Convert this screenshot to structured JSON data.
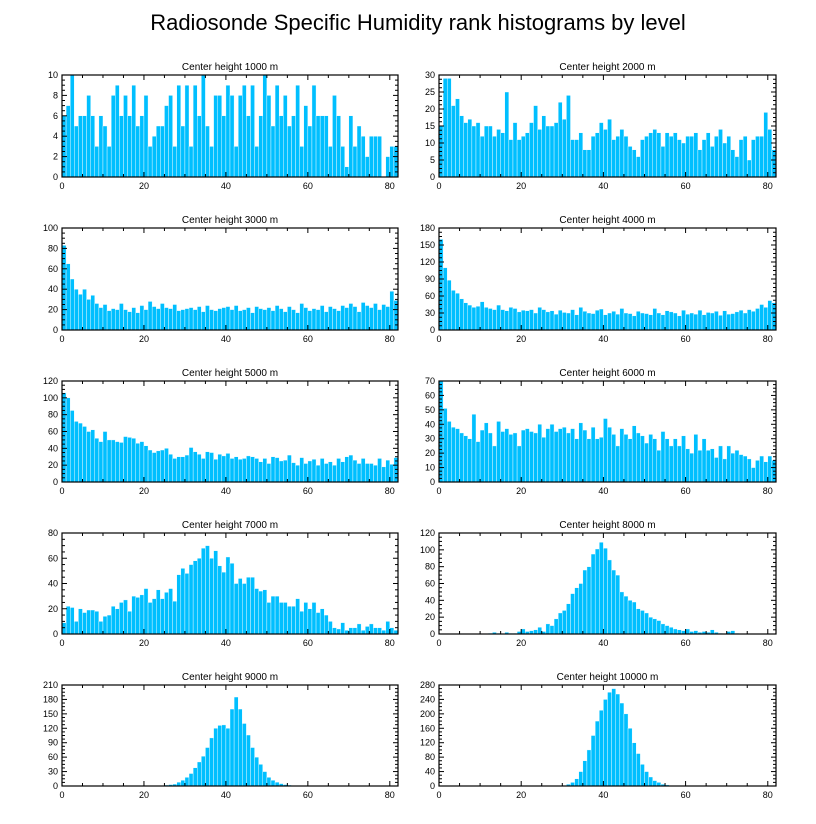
{
  "title": "Radiosonde Specific Humidity rank histograms by level",
  "colors": {
    "bar": "#00bfff",
    "axis": "#000000",
    "background": "#ffffff"
  },
  "chart_data": [
    {
      "type": "bar",
      "title": "Center height 1000 m",
      "xlim": [
        0,
        82
      ],
      "ylim": [
        0,
        10
      ],
      "xticks": [
        0,
        20,
        40,
        60,
        80
      ],
      "yticks": [
        0,
        2,
        4,
        6,
        8,
        10
      ],
      "values": [
        6,
        7,
        10,
        5,
        6,
        6,
        8,
        6,
        3,
        6,
        5,
        3,
        8,
        9,
        6,
        8,
        6,
        9,
        5,
        6,
        8,
        3,
        4,
        5,
        5,
        7,
        8,
        3,
        9,
        5,
        9,
        3,
        9,
        6,
        10,
        5,
        3,
        8,
        8,
        6,
        9,
        8,
        3,
        8,
        9,
        6,
        9,
        3,
        6,
        10,
        8,
        5,
        9,
        6,
        8,
        5,
        6,
        9,
        3,
        7,
        5,
        9,
        6,
        6,
        6,
        3,
        8,
        6,
        3,
        1,
        6,
        3,
        5,
        4,
        2,
        4,
        4,
        4,
        0,
        2,
        3,
        3
      ]
    },
    {
      "type": "bar",
      "title": "Center height 2000 m",
      "xlim": [
        0,
        82
      ],
      "ylim": [
        0,
        30
      ],
      "xticks": [
        0,
        20,
        40,
        60,
        80
      ],
      "yticks": [
        0,
        5,
        10,
        15,
        20,
        25,
        30
      ],
      "values": [
        15,
        29,
        29,
        21,
        23,
        18,
        16,
        17,
        15,
        16,
        12,
        15,
        15,
        12,
        14,
        13,
        25,
        11,
        16,
        11,
        12,
        13,
        16,
        21,
        14,
        18,
        15,
        15,
        16,
        22,
        17,
        24,
        11,
        11,
        13,
        8,
        8,
        12,
        13,
        16,
        14,
        17,
        11,
        12,
        14,
        12,
        9,
        8,
        6,
        11,
        12,
        13,
        14,
        13,
        9,
        13,
        12,
        13,
        11,
        10,
        12,
        12,
        13,
        8,
        11,
        13,
        9,
        12,
        14,
        10,
        12,
        8,
        6,
        11,
        12,
        5,
        11,
        12,
        12,
        19,
        14,
        8
      ]
    },
    {
      "type": "bar",
      "title": "Center height 3000 m",
      "xlim": [
        0,
        82
      ],
      "ylim": [
        0,
        100
      ],
      "xticks": [
        0,
        20,
        40,
        60,
        80
      ],
      "yticks": [
        0,
        20,
        40,
        60,
        80,
        100
      ],
      "values": [
        83,
        65,
        50,
        40,
        35,
        40,
        30,
        34,
        26,
        22,
        25,
        19,
        21,
        20,
        26,
        20,
        18,
        22,
        17,
        24,
        20,
        28,
        23,
        21,
        26,
        22,
        21,
        25,
        19,
        20,
        21,
        22,
        20,
        23,
        18,
        24,
        20,
        19,
        21,
        22,
        23,
        20,
        24,
        19,
        20,
        22,
        17,
        23,
        21,
        20,
        22,
        19,
        24,
        21,
        18,
        23,
        20,
        17,
        26,
        22,
        19,
        21,
        20,
        24,
        18,
        23,
        21,
        19,
        24,
        22,
        26,
        23,
        18,
        27,
        24,
        22,
        26,
        20,
        25,
        23,
        38,
        29
      ]
    },
    {
      "type": "bar",
      "title": "Center height 4000 m",
      "xlim": [
        0,
        82
      ],
      "ylim": [
        0,
        180
      ],
      "xticks": [
        0,
        20,
        40,
        60,
        80
      ],
      "yticks": [
        0,
        30,
        60,
        90,
        120,
        150,
        180
      ],
      "values": [
        160,
        110,
        88,
        70,
        65,
        55,
        48,
        44,
        40,
        42,
        50,
        40,
        38,
        36,
        44,
        36,
        34,
        40,
        38,
        32,
        35,
        34,
        36,
        30,
        40,
        36,
        32,
        34,
        28,
        35,
        31,
        30,
        36,
        27,
        40,
        33,
        30,
        29,
        35,
        37,
        27,
        30,
        33,
        28,
        38,
        30,
        29,
        25,
        33,
        30,
        29,
        27,
        38,
        30,
        27,
        34,
        32,
        30,
        25,
        35,
        28,
        30,
        28,
        35,
        27,
        31,
        30,
        33,
        26,
        34,
        28,
        29,
        32,
        35,
        30,
        36,
        33,
        38,
        45,
        40,
        52,
        48
      ]
    },
    {
      "type": "bar",
      "title": "Center height 5000 m",
      "xlim": [
        0,
        82
      ],
      "ylim": [
        0,
        120
      ],
      "xticks": [
        0,
        20,
        40,
        60,
        80
      ],
      "yticks": [
        0,
        20,
        40,
        60,
        80,
        100,
        120
      ],
      "values": [
        106,
        100,
        85,
        72,
        70,
        66,
        60,
        62,
        52,
        48,
        60,
        50,
        50,
        48,
        47,
        54,
        53,
        52,
        46,
        48,
        43,
        38,
        35,
        37,
        38,
        40,
        33,
        28,
        30,
        30,
        32,
        41,
        36,
        33,
        28,
        36,
        35,
        27,
        33,
        31,
        34,
        28,
        30,
        27,
        28,
        31,
        30,
        28,
        24,
        28,
        22,
        30,
        29,
        25,
        26,
        32,
        23,
        20,
        29,
        22,
        25,
        27,
        20,
        28,
        22,
        24,
        20,
        28,
        24,
        30,
        32,
        26,
        22,
        28,
        22,
        22,
        20,
        28,
        18,
        26,
        21,
        29
      ]
    },
    {
      "type": "bar",
      "title": "Center height 6000 m",
      "xlim": [
        0,
        82
      ],
      "ylim": [
        0,
        70
      ],
      "xticks": [
        0,
        20,
        40,
        60,
        80
      ],
      "yticks": [
        0,
        10,
        20,
        30,
        40,
        50,
        60,
        70
      ],
      "values": [
        70,
        51,
        42,
        38,
        37,
        34,
        32,
        30,
        47,
        28,
        36,
        41,
        34,
        25,
        42,
        35,
        37,
        33,
        34,
        25,
        36,
        37,
        35,
        34,
        40,
        31,
        37,
        40,
        35,
        37,
        38,
        34,
        37,
        30,
        41,
        36,
        30,
        38,
        30,
        31,
        44,
        38,
        33,
        25,
        37,
        33,
        30,
        39,
        34,
        32,
        27,
        33,
        30,
        22,
        35,
        30,
        25,
        30,
        25,
        32,
        23,
        20,
        33,
        22,
        30,
        22,
        23,
        17,
        25,
        16,
        25,
        20,
        22,
        19,
        18,
        16,
        10,
        15,
        18,
        14,
        18,
        15
      ]
    },
    {
      "type": "bar",
      "title": "Center height 7000 m",
      "xlim": [
        0,
        82
      ],
      "ylim": [
        0,
        80
      ],
      "xticks": [
        0,
        20,
        40,
        60,
        80
      ],
      "yticks": [
        0,
        20,
        40,
        60,
        80
      ],
      "values": [
        9,
        22,
        21,
        10,
        20,
        17,
        19,
        19,
        18,
        10,
        14,
        15,
        22,
        20,
        25,
        27,
        18,
        30,
        29,
        31,
        36,
        25,
        28,
        35,
        28,
        33,
        36,
        26,
        47,
        52,
        48,
        55,
        58,
        60,
        68,
        70,
        60,
        66,
        54,
        49,
        61,
        56,
        40,
        44,
        40,
        45,
        45,
        36,
        34,
        35,
        25,
        30,
        30,
        25,
        25,
        22,
        22,
        28,
        18,
        25,
        20,
        25,
        17,
        20,
        15,
        10,
        5,
        4,
        9,
        3,
        5,
        5,
        8,
        3,
        6,
        8,
        5,
        5,
        3,
        10,
        5,
        3
      ]
    },
    {
      "type": "bar",
      "title": "Center height 8000 m",
      "xlim": [
        0,
        82
      ],
      "ylim": [
        0,
        120
      ],
      "xticks": [
        0,
        20,
        40,
        60,
        80
      ],
      "yticks": [
        0,
        20,
        40,
        60,
        80,
        100,
        120
      ],
      "values": [
        0,
        0,
        0,
        0,
        0,
        0,
        0,
        0,
        0,
        0,
        0,
        0,
        1,
        2,
        1,
        0,
        2,
        1,
        1,
        3,
        6,
        3,
        4,
        5,
        8,
        3,
        12,
        10,
        18,
        25,
        28,
        36,
        48,
        55,
        60,
        76,
        80,
        95,
        101,
        109,
        102,
        88,
        76,
        70,
        50,
        45,
        40,
        38,
        30,
        28,
        25,
        20,
        18,
        16,
        12,
        10,
        8,
        6,
        5,
        4,
        6,
        3,
        4,
        2,
        3,
        2,
        5,
        2,
        1,
        0,
        3,
        4,
        1,
        0,
        0,
        0,
        0,
        0,
        0,
        0,
        0,
        0
      ]
    },
    {
      "type": "bar",
      "title": "Center height 9000 m",
      "xlim": [
        0,
        82
      ],
      "ylim": [
        0,
        210
      ],
      "xticks": [
        0,
        20,
        40,
        60,
        80
      ],
      "yticks": [
        0,
        30,
        60,
        90,
        120,
        150,
        180,
        210
      ],
      "values": [
        0,
        0,
        0,
        0,
        0,
        0,
        0,
        0,
        0,
        0,
        0,
        0,
        0,
        0,
        0,
        0,
        0,
        0,
        0,
        0,
        0,
        0,
        0,
        0,
        1,
        2,
        3,
        4,
        8,
        12,
        18,
        26,
        38,
        50,
        62,
        80,
        100,
        120,
        126,
        127,
        120,
        160,
        185,
        160,
        130,
        106,
        80,
        60,
        45,
        30,
        18,
        12,
        8,
        5,
        3,
        2,
        1,
        1,
        0,
        0,
        0,
        0,
        0,
        0,
        0,
        0,
        0,
        0,
        0,
        0,
        0,
        0,
        0,
        0,
        0,
        0,
        0,
        0,
        0,
        0,
        0,
        0
      ]
    },
    {
      "type": "bar",
      "title": "Center height 10000 m",
      "xlim": [
        0,
        82
      ],
      "ylim": [
        0,
        280
      ],
      "xticks": [
        0,
        20,
        40,
        60,
        80
      ],
      "yticks": [
        0,
        40,
        80,
        120,
        160,
        200,
        240,
        280
      ],
      "values": [
        0,
        0,
        0,
        0,
        0,
        0,
        0,
        0,
        0,
        0,
        0,
        0,
        0,
        0,
        0,
        0,
        0,
        0,
        0,
        0,
        0,
        0,
        0,
        0,
        0,
        0,
        0,
        0,
        0,
        0,
        2,
        5,
        10,
        20,
        40,
        70,
        100,
        140,
        180,
        210,
        240,
        260,
        270,
        255,
        230,
        200,
        160,
        120,
        90,
        60,
        40,
        25,
        15,
        10,
        5,
        3,
        1,
        0,
        0,
        0,
        0,
        0,
        0,
        0,
        0,
        0,
        0,
        0,
        0,
        0,
        0,
        0,
        0,
        0,
        0,
        0,
        0,
        0,
        0,
        0,
        0,
        0
      ]
    }
  ]
}
